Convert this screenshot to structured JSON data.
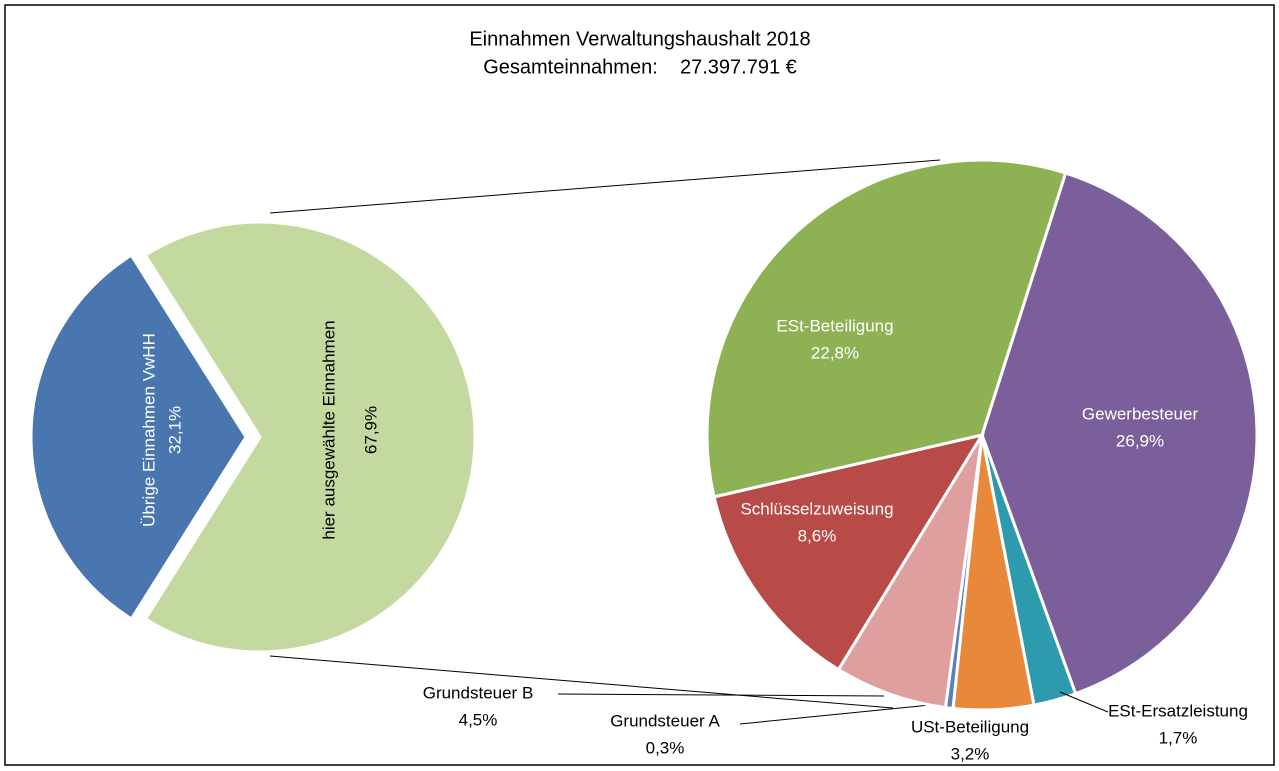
{
  "chart_data": {
    "type": "pie",
    "title": "Einnahmen Verwaltungshaushalt 2018",
    "subtitle": "Gesamteinnahmen:    27.397.791 €",
    "pies": [
      {
        "categories": [
          "Übrige Einnahmen VwHH",
          "hier ausgewählte Einnahmen"
        ],
        "values": [
          32.1,
          67.9
        ],
        "value_labels": [
          "32,1%",
          "67,9%"
        ],
        "colors": [
          "#4a76b0",
          "#c4d9a0"
        ]
      },
      {
        "categories": [
          "Gewerbesteuer",
          "ESt-Ersatzleistung",
          "USt-Beteiligung",
          "Grundsteuer A",
          "Grundsteuer B",
          "Schlüsselzuweisung",
          "ESt-Beteiligung"
        ],
        "values": [
          26.9,
          1.7,
          3.2,
          0.3,
          4.5,
          8.6,
          22.8
        ],
        "value_labels": [
          "26,9%",
          "1,7%",
          "3,2%",
          "0,3%",
          "4,5%",
          "8,6%",
          "22,8%"
        ],
        "colors": [
          "#7b5f9a",
          "#2e9aae",
          "#e8883a",
          "#5a7fbf",
          "#df9f9e",
          "#b84a48",
          "#8eb153"
        ]
      }
    ]
  }
}
